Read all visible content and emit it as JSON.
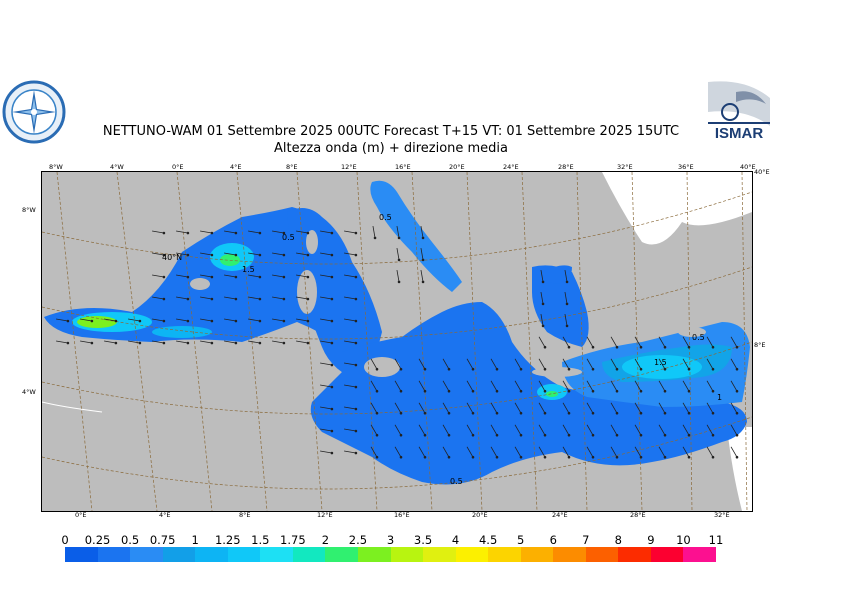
{
  "header": {
    "title_line1": "NETTUNO-WAM  01 Settembre 2025 00UTC Forecast T+15 VT: 01 Settembre 2025 15UTC",
    "title_line2": "Altezza onda (m) + direzione media"
  },
  "logos": {
    "left": {
      "icon": "compass-rose-emblem-icon"
    },
    "right": {
      "icon": "ismar-logo-icon",
      "text": "ISMAR"
    }
  },
  "map": {
    "region": "Mediterranean Sea",
    "land_color": "#bdbdbd",
    "top_lon_labels": [
      "8°W",
      "4°W",
      "0°E",
      "4°E",
      "8°E",
      "12°E",
      "16°E",
      "20°E",
      "24°E",
      "28°E",
      "32°E",
      "36°E",
      "40°E"
    ],
    "bottom_lon_labels": [
      "0°E",
      "4°E",
      "8°E",
      "12°E",
      "16°E",
      "20°E",
      "24°E",
      "28°E",
      "32°E"
    ],
    "left_lat_labels": [
      "8°W",
      "4°W"
    ],
    "right_lat_labels": [
      "40°E",
      "8°E"
    ],
    "inner_label": "40°N",
    "contour_labels": [
      "0.5",
      "0.5",
      "0.5",
      "1",
      "1",
      "1",
      "1",
      "1.5",
      "1.5",
      "0.5",
      "0.5"
    ]
  },
  "colorbar": {
    "labels": [
      "0",
      "0.25",
      "0.5",
      "0.75",
      "1",
      "1.25",
      "1.5",
      "1.75",
      "2",
      "2.5",
      "3",
      "3.5",
      "4",
      "4.5",
      "5",
      "6",
      "7",
      "8",
      "9",
      "10",
      "11"
    ],
    "colors": [
      "#0a5ee8",
      "#1b74f0",
      "#2a8cf4",
      "#129fe8",
      "#0db4f4",
      "#10c8f8",
      "#1de0f4",
      "#12e8c0",
      "#30f070",
      "#7cf020",
      "#b8f410",
      "#e0f010",
      "#fcf000",
      "#fcd400",
      "#fcb000",
      "#fc8c00",
      "#fc6000",
      "#fc2c00",
      "#fc0030",
      "#fc1090"
    ]
  }
}
